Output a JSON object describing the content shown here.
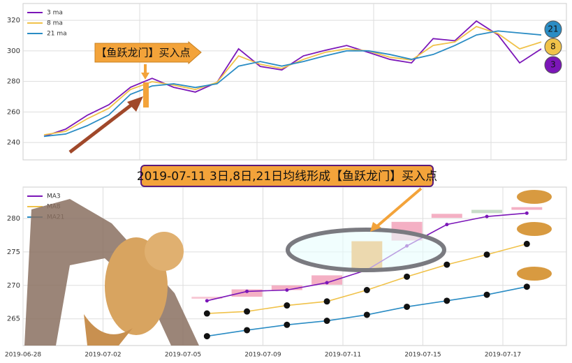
{
  "chart_data": [
    {
      "type": "line",
      "annotation": "【鱼跃龙门】买入点",
      "ylim": [
        228.6,
        331
      ],
      "yticks": [
        240,
        260,
        280,
        300,
        320
      ],
      "grid": true,
      "series": [
        {
          "name": "3 ma",
          "color": "#7b16b8",
          "end_label": "3",
          "values": [
            244,
            248.7,
            257.8,
            264.7,
            276.1,
            282,
            276.1,
            273,
            279.3,
            301.3,
            289.8,
            287.5,
            296.7,
            300.3,
            303.5,
            299,
            294.4,
            292.1,
            308,
            306.6,
            319.5,
            310.4,
            292.1,
            301.3
          ]
        },
        {
          "name": "8 ma",
          "color": "#f0c24a",
          "end_label": "8",
          "values": [
            245,
            247.3,
            255.5,
            262.4,
            274.7,
            279.8,
            277.5,
            274.7,
            279.3,
            296.7,
            291.2,
            288.5,
            294.4,
            299,
            301.3,
            299.9,
            295.8,
            294,
            303.5,
            305.8,
            315.9,
            311.3,
            301.3,
            305.8
          ]
        },
        {
          "name": "21 ma",
          "color": "#2a8cc4",
          "end_label": "21",
          "values": [
            244,
            245.5,
            251,
            258,
            271.5,
            277,
            278.4,
            276,
            278.4,
            290,
            293,
            290,
            293,
            296.7,
            300,
            300,
            297.6,
            294.4,
            297.6,
            303.5,
            310.4,
            313,
            311.7,
            310.4
          ]
        }
      ]
    },
    {
      "type": "candlestick",
      "title": "2019-07-11 3日,8日,21日均线形成【鱼跃龙门】买入点",
      "xlim": [
        0,
        13.59
      ],
      "xticks": [
        {
          "value": 0,
          "label": "2019-06-28"
        },
        {
          "value": 2,
          "label": "2019-07-02"
        },
        {
          "value": 4,
          "label": "2019-07-05"
        },
        {
          "value": 6,
          "label": "2019-07-09"
        },
        {
          "value": 8,
          "label": "2019-07-11"
        },
        {
          "value": 10,
          "label": "2019-07-15"
        },
        {
          "value": 12,
          "label": "2019-07-17"
        }
      ],
      "ylim": [
        261,
        284.7
      ],
      "yticks": [
        265,
        270,
        275,
        280
      ],
      "grid": true,
      "x": [
        4.6,
        5.6,
        6.6,
        7.6,
        8.6,
        9.6,
        10.6,
        11.6,
        12.6
      ],
      "candles": [
        {
          "open": 268.0,
          "close": 268.3,
          "color": "#f8c8d4"
        },
        {
          "open": 268.3,
          "close": 269.4,
          "color": "#f4b0c4"
        },
        {
          "open": 269.3,
          "close": 270.0,
          "color": "#f4b0c4"
        },
        {
          "open": 270.1,
          "close": 271.5,
          "color": "#f4b0c4"
        },
        {
          "open": 272.3,
          "close": 276.6,
          "color": "#f3a33a"
        },
        {
          "open": 276.7,
          "close": 279.5,
          "color": "#f4b0c4"
        },
        {
          "open": 280.1,
          "close": 280.7,
          "color": "#f4b0c4"
        },
        {
          "open": 280.8,
          "close": 281.3,
          "color": "#c8dcc8"
        },
        {
          "open": 281.3,
          "close": 281.7,
          "color": "#f4b0c4"
        }
      ],
      "series": [
        {
          "name": "MA3",
          "color": "#7b16b8",
          "values": [
            267.7,
            269.1,
            269.3,
            270.4,
            272.3,
            275.9,
            279.1,
            280.3,
            280.8
          ]
        },
        {
          "name": "MA8",
          "color": "#f0c24a",
          "values": [
            265.8,
            266.1,
            267.0,
            267.6,
            269.3,
            271.3,
            273.1,
            274.6,
            276.2
          ]
        },
        {
          "name": "MA21",
          "color": "#2a8cc4",
          "values": [
            262.4,
            263.3,
            264.1,
            264.7,
            265.6,
            266.8,
            267.7,
            268.6,
            269.8
          ]
        }
      ]
    }
  ]
}
